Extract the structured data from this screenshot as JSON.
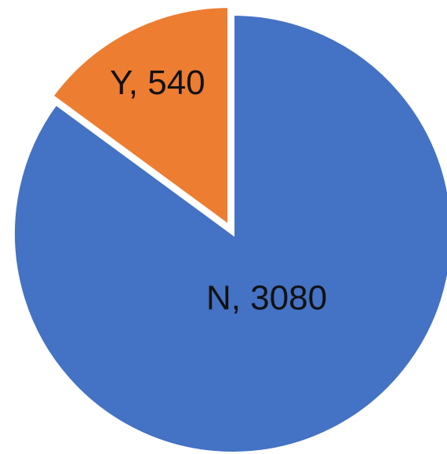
{
  "chart_data": {
    "type": "pie",
    "categories": [
      "N",
      "Y"
    ],
    "values": [
      3080,
      540
    ],
    "value_labels": [
      "N, 3080",
      "Y, 540"
    ],
    "colors": [
      "#4472c4",
      "#ed7d31"
    ]
  }
}
